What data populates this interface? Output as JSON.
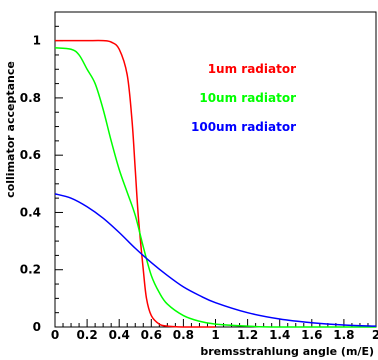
{
  "chart_data": {
    "type": "line",
    "xlabel": "bremsstrahlung angle (m/E)",
    "ylabel": "collimator acceptance",
    "xlim": [
      0,
      2
    ],
    "ylim": [
      0,
      1.1
    ],
    "xticks": [
      "0",
      "0.2",
      "0.4",
      "0.6",
      "0.8",
      "1",
      "1.2",
      "1.4",
      "1.6",
      "1.8",
      "2"
    ],
    "yticks": [
      "0",
      "0.2",
      "0.4",
      "0.6",
      "0.8",
      "1"
    ],
    "grid": false,
    "legend_position": "top-right",
    "series": [
      {
        "name": "1um radiator",
        "color": "#ff0000",
        "x": [
          0,
          0.1,
          0.2,
          0.3,
          0.35,
          0.4,
          0.45,
          0.48,
          0.5,
          0.52,
          0.55,
          0.57,
          0.6,
          0.65,
          0.7,
          0.8,
          0.9,
          1.0
        ],
        "y": [
          1.0,
          1.0,
          1.0,
          1.0,
          0.995,
          0.97,
          0.88,
          0.72,
          0.55,
          0.38,
          0.2,
          0.1,
          0.04,
          0.01,
          0.003,
          0,
          0,
          0
        ]
      },
      {
        "name": "10um radiator",
        "color": "#00ff00",
        "x": [
          0,
          0.1,
          0.15,
          0.2,
          0.25,
          0.3,
          0.35,
          0.4,
          0.45,
          0.5,
          0.55,
          0.6,
          0.65,
          0.7,
          0.8,
          0.9,
          1.0,
          1.2,
          1.4,
          2.0
        ],
        "y": [
          0.975,
          0.97,
          0.95,
          0.9,
          0.85,
          0.76,
          0.65,
          0.55,
          0.47,
          0.39,
          0.28,
          0.18,
          0.12,
          0.08,
          0.04,
          0.02,
          0.01,
          0.003,
          0,
          0
        ]
      },
      {
        "name": "100um radiator",
        "color": "#0000ff",
        "x": [
          0,
          0.1,
          0.2,
          0.3,
          0.4,
          0.5,
          0.6,
          0.7,
          0.8,
          0.9,
          1.0,
          1.2,
          1.4,
          1.6,
          1.8,
          2.0
        ],
        "y": [
          0.465,
          0.45,
          0.42,
          0.38,
          0.33,
          0.275,
          0.225,
          0.18,
          0.14,
          0.11,
          0.085,
          0.05,
          0.028,
          0.015,
          0.007,
          0.003
        ]
      }
    ]
  }
}
